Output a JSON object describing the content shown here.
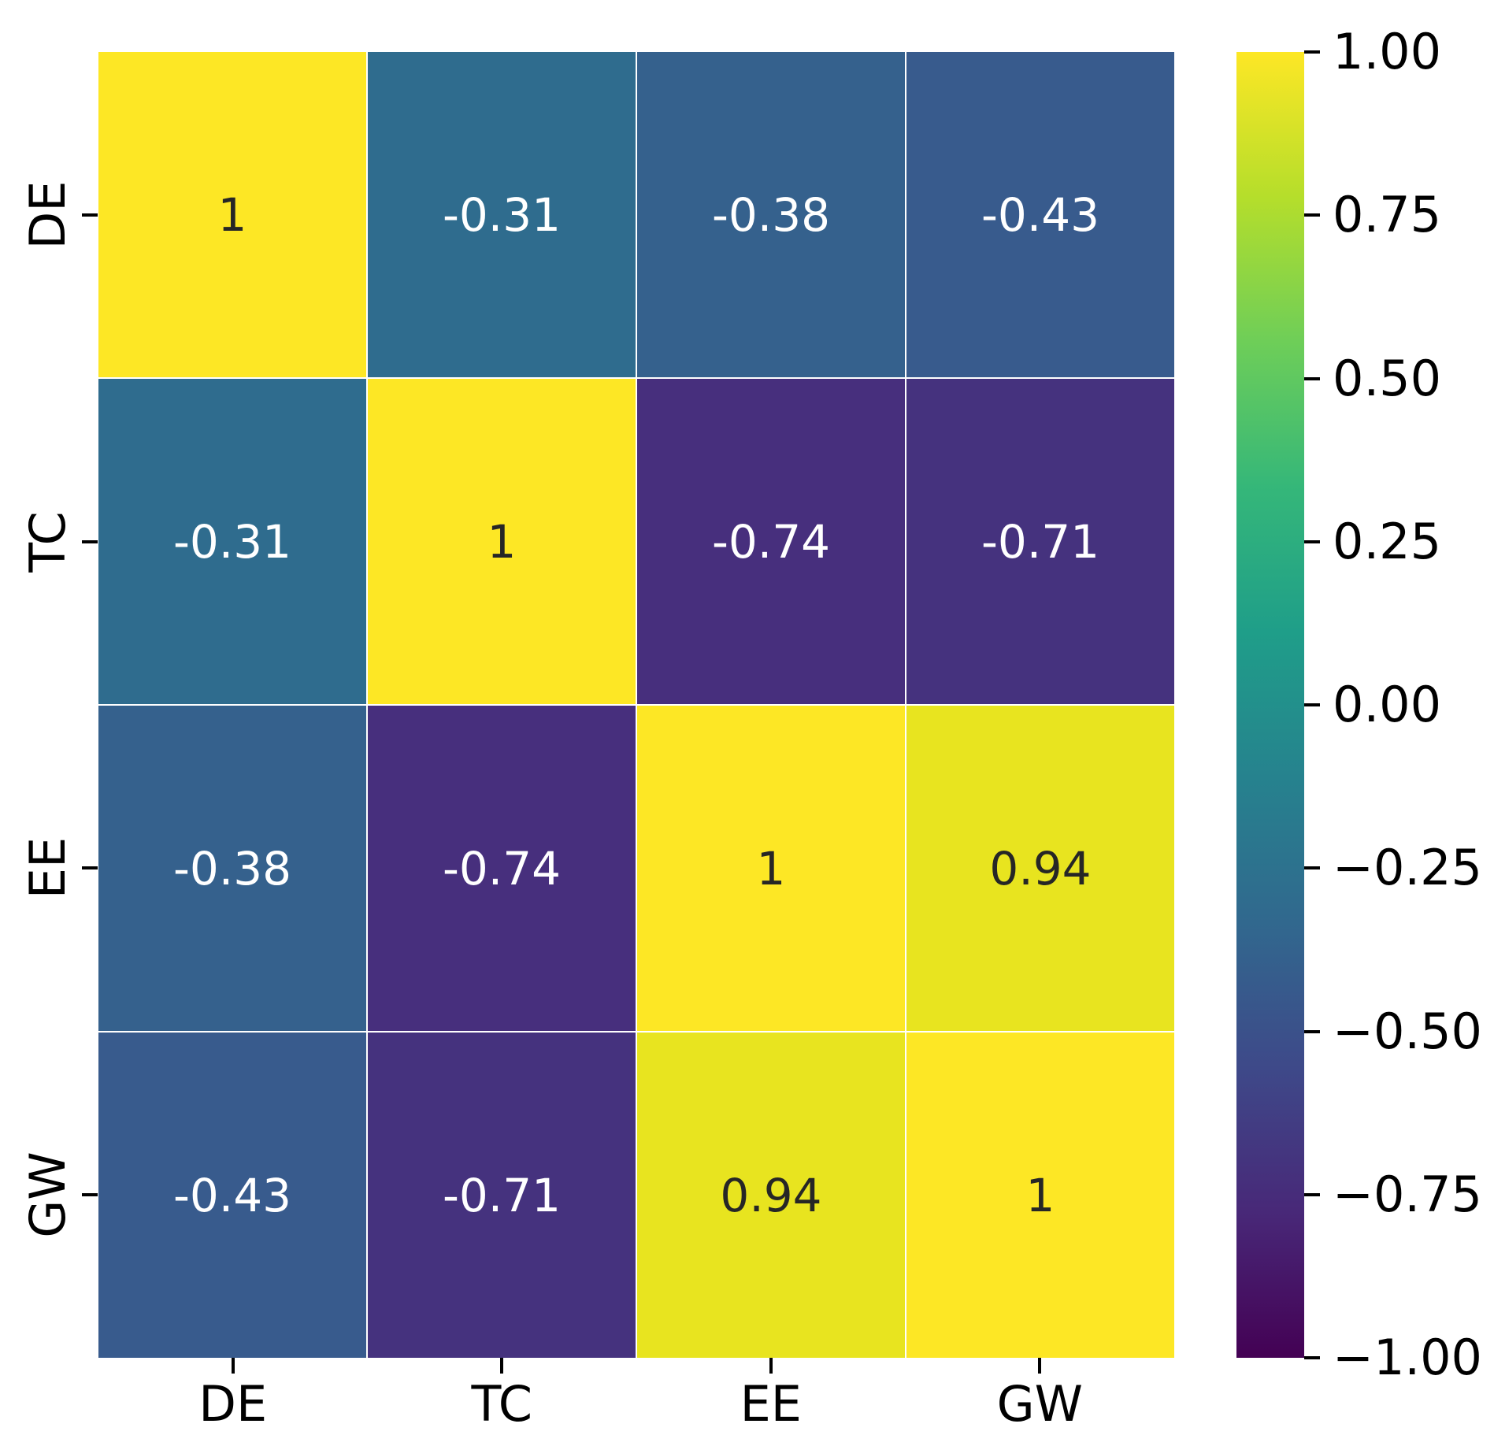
{
  "figure": {
    "background": "#ffffff",
    "title": ""
  },
  "chart_data": {
    "type": "heatmap",
    "title": "",
    "xlabel": "",
    "ylabel": "",
    "x_tick_labels": [
      "DE",
      "TC",
      "EE",
      "GW"
    ],
    "y_tick_labels": [
      "DE",
      "TC",
      "EE",
      "GW"
    ],
    "matrix": [
      [
        1,
        -0.31,
        -0.38,
        -0.43
      ],
      [
        -0.31,
        1,
        -0.74,
        -0.71
      ],
      [
        -0.38,
        -0.74,
        1,
        0.94
      ],
      [
        -0.43,
        -0.71,
        0.94,
        1
      ]
    ],
    "cell_labels": [
      [
        "1",
        "-0.31",
        "-0.38",
        "-0.43"
      ],
      [
        "-0.31",
        "1",
        "-0.74",
        "-0.71"
      ],
      [
        "-0.38",
        "-0.74",
        "1",
        "0.94"
      ],
      [
        "-0.43",
        "-0.71",
        "0.94",
        "1"
      ]
    ],
    "cell_colors": [
      [
        "#fde725",
        "#2f6c8e",
        "#35618d",
        "#385b8d"
      ],
      [
        "#2f6c8e",
        "#fde725",
        "#472f7d",
        "#45327e"
      ],
      [
        "#35618d",
        "#472f7d",
        "#fde725",
        "#e8e41f"
      ],
      [
        "#385b8d",
        "#45327e",
        "#e8e41f",
        "#fde725"
      ]
    ],
    "cell_text_colors": [
      [
        "#262626",
        "#ffffff",
        "#ffffff",
        "#ffffff"
      ],
      [
        "#ffffff",
        "#262626",
        "#ffffff",
        "#ffffff"
      ],
      [
        "#ffffff",
        "#ffffff",
        "#262626",
        "#262626"
      ],
      [
        "#ffffff",
        "#ffffff",
        "#262626",
        "#262626"
      ]
    ],
    "colormap": "viridis",
    "vmin": -1,
    "vmax": 1,
    "grid_line_color": "#ffffff",
    "tick_color": "#000000",
    "label_color": "#000000",
    "legend_position": "right",
    "colorbar": {
      "tick_labels": [
        "1.00",
        "0.75",
        "0.50",
        "0.25",
        "0.00",
        "−0.25",
        "−0.50",
        "−0.75",
        "−1.00"
      ],
      "gradient_top_to_bottom": [
        "#fde725",
        "#b5de2b",
        "#6ece58",
        "#35b779",
        "#1f9e89",
        "#26828e",
        "#31688e",
        "#3e4989",
        "#482878",
        "#440154"
      ]
    }
  }
}
